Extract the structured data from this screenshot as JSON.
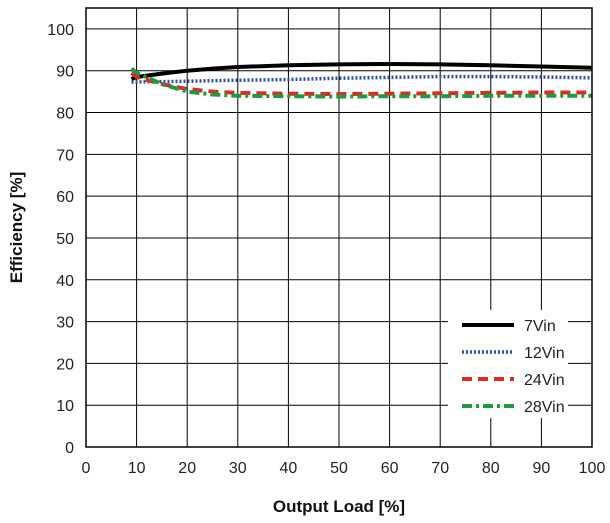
{
  "chart_data": {
    "type": "line",
    "title": "",
    "xlabel": "Output Load [%]",
    "ylabel": "Efficiency [%]",
    "xlim": [
      0,
      100
    ],
    "ylim": [
      0,
      105
    ],
    "x_ticks": [
      0,
      10,
      20,
      30,
      40,
      50,
      60,
      70,
      80,
      90,
      100
    ],
    "y_ticks": [
      0,
      10,
      20,
      30,
      40,
      50,
      60,
      70,
      80,
      90,
      100
    ],
    "grid": true,
    "legend_position": "bottom-right",
    "series": [
      {
        "name": "7Vin",
        "color": "#000000",
        "style": "solid",
        "x": [
          9,
          10,
          15,
          20,
          25,
          30,
          40,
          50,
          60,
          70,
          80,
          90,
          100
        ],
        "y": [
          88,
          88.5,
          89.3,
          90,
          90.5,
          90.9,
          91.3,
          91.5,
          91.6,
          91.5,
          91.3,
          91,
          90.7
        ]
      },
      {
        "name": "12Vin",
        "color": "#2b4fa2",
        "style": "dotted",
        "x": [
          9,
          10,
          15,
          20,
          25,
          30,
          40,
          50,
          60,
          70,
          80,
          90,
          100
        ],
        "y": [
          87.3,
          87.3,
          87.4,
          87.5,
          87.6,
          87.7,
          87.9,
          88.2,
          88.4,
          88.6,
          88.6,
          88.5,
          88.3
        ]
      },
      {
        "name": "24Vin",
        "color": "#e0291f",
        "style": "dashed",
        "x": [
          9,
          10,
          15,
          20,
          25,
          30,
          40,
          50,
          60,
          70,
          80,
          90,
          100
        ],
        "y": [
          89.5,
          88.5,
          86.8,
          85.6,
          85,
          84.7,
          84.5,
          84.4,
          84.5,
          84.6,
          84.7,
          84.8,
          84.8
        ]
      },
      {
        "name": "28Vin",
        "color": "#1e9a3c",
        "style": "dashdot",
        "x": [
          9,
          10,
          15,
          20,
          25,
          30,
          40,
          50,
          60,
          70,
          80,
          90,
          100
        ],
        "y": [
          90.5,
          89.5,
          86.8,
          85,
          84.3,
          84,
          83.9,
          83.8,
          83.9,
          83.9,
          84,
          84,
          84
        ]
      }
    ]
  }
}
